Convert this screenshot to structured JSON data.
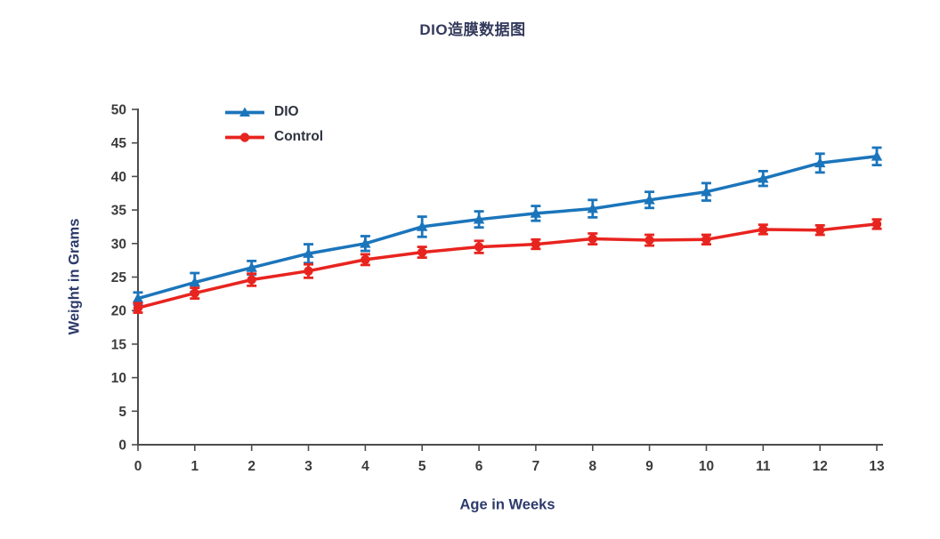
{
  "chart_data": {
    "type": "line",
    "title": "DIO造膜数据图",
    "xlabel": "Age in Weeks",
    "ylabel": "Weight in Grams",
    "x": [
      0,
      1,
      2,
      3,
      4,
      5,
      6,
      7,
      8,
      9,
      10,
      11,
      12,
      13
    ],
    "xlim": [
      0,
      13
    ],
    "ylim": [
      0,
      50
    ],
    "x_ticks": [
      0,
      1,
      2,
      3,
      4,
      5,
      6,
      7,
      8,
      9,
      10,
      11,
      12,
      13
    ],
    "y_ticks": [
      0,
      5,
      10,
      15,
      20,
      25,
      30,
      35,
      40,
      45,
      50
    ],
    "grid": false,
    "error_bars": true,
    "legend_position": "upper-left-inside",
    "series": [
      {
        "name": "DIO",
        "color": "#1b75bb",
        "marker": "triangle",
        "values": [
          21.8,
          24.2,
          26.4,
          28.5,
          30.0,
          32.5,
          33.6,
          34.5,
          35.2,
          36.5,
          37.7,
          39.7,
          42.0,
          43.0
        ],
        "errors": [
          0.9,
          1.4,
          1.0,
          1.4,
          1.1,
          1.5,
          1.2,
          1.1,
          1.3,
          1.2,
          1.3,
          1.1,
          1.4,
          1.3
        ]
      },
      {
        "name": "Control",
        "color": "#e8241f",
        "marker": "circle",
        "values": [
          20.4,
          22.6,
          24.6,
          25.9,
          27.6,
          28.7,
          29.5,
          29.9,
          30.7,
          30.5,
          30.6,
          32.1,
          32.0,
          32.9
        ],
        "errors": [
          0.7,
          0.8,
          0.9,
          1.0,
          0.8,
          0.8,
          0.9,
          0.7,
          0.8,
          0.8,
          0.7,
          0.7,
          0.7,
          0.7
        ]
      }
    ]
  },
  "theme": {
    "background": "#ffffff",
    "title_color": "#333a5b",
    "axis_title_color": "#2d3a6b",
    "tick_label_color": "#3b3b3d",
    "axis_line_color": "#4d4d4f",
    "legend_text_color": "#2f3340"
  }
}
